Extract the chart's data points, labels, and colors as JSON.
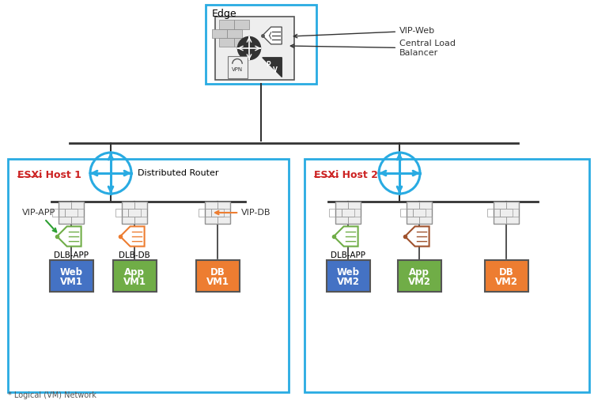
{
  "edge_label": "Edge",
  "esxi1_label": "ESXi Host 1",
  "esxi2_label": "ESXi Host 2",
  "host_box_color": "#29ABE2",
  "edge_box_color": "#29ABE2",
  "vm_web_color": "#4472C4",
  "vm_app_color": "#70AD47",
  "vm_db_color": "#ED7D31",
  "dlb_app_color": "#70AD47",
  "dlb_db_color": "#ED7D31",
  "dlb_db2_color": "#A0522D",
  "vip_app_label": "VIP-APP",
  "vip_db_label": "VIP-DB",
  "vip_web_label": "VIP-Web",
  "clb_label": "Central Load\nBalancer",
  "dlb_app_label": "DLB-APP",
  "dlb_db_label": "DLB-DB",
  "dist_router_label": "Distributed Router",
  "bg_color": "#FFFFFF",
  "line_color": "#333333",
  "router_color": "#29ABE2",
  "footnote": "* Logical (VM) Network"
}
